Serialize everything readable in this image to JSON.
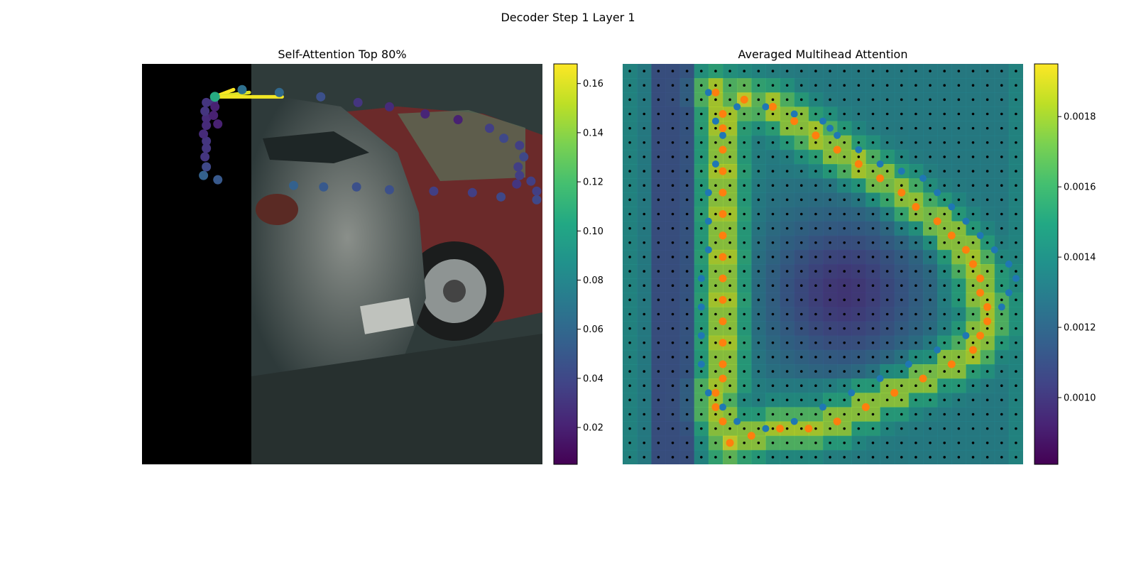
{
  "figure": {
    "title": "Decoder Step 1 Layer 1"
  },
  "chart_data": [
    {
      "type": "scatter",
      "title": "Self-Attention Top 80%",
      "background": "car photograph (left portion masked black)",
      "query_point": [
        51,
        23
      ],
      "attention_lines": [
        {
          "to": [
            64,
            18
          ],
          "weight": 0.17
        },
        {
          "to": [
            75,
            20
          ],
          "weight": 0.16
        },
        {
          "to": [
            98,
            23
          ],
          "weight": 0.165
        }
      ],
      "points": [
        [
          51,
          23,
          0.105
        ],
        [
          70,
          18,
          0.065
        ],
        [
          96,
          20,
          0.06
        ],
        [
          125,
          23,
          0.045
        ],
        [
          151,
          27,
          0.03
        ],
        [
          173,
          30,
          0.025
        ],
        [
          198,
          35,
          0.022
        ],
        [
          221,
          39,
          0.02
        ],
        [
          243,
          45,
          0.035
        ],
        [
          253,
          52,
          0.04
        ],
        [
          264,
          57,
          0.035
        ],
        [
          267,
          65,
          0.04
        ],
        [
          263,
          72,
          0.035
        ],
        [
          264,
          78,
          0.035
        ],
        [
          272,
          82,
          0.035
        ],
        [
          262,
          84,
          0.03
        ],
        [
          276,
          89,
          0.035
        ],
        [
          276,
          95,
          0.04
        ],
        [
          251,
          93,
          0.04
        ],
        [
          231,
          90,
          0.035
        ],
        [
          204,
          89,
          0.035
        ],
        [
          173,
          88,
          0.045
        ],
        [
          150,
          86,
          0.045
        ],
        [
          127,
          86,
          0.05
        ],
        [
          106,
          85,
          0.055
        ],
        [
          53,
          81,
          0.05
        ],
        [
          43,
          78,
          0.055
        ],
        [
          45,
          72,
          0.04
        ],
        [
          44,
          65,
          0.03
        ],
        [
          45,
          59,
          0.03
        ],
        [
          45,
          54,
          0.03
        ],
        [
          43,
          49,
          0.025
        ],
        [
          45,
          43,
          0.025
        ],
        [
          45,
          38,
          0.025
        ],
        [
          44,
          33,
          0.03
        ],
        [
          45,
          27,
          0.03
        ],
        [
          50,
          27,
          0.03
        ],
        [
          51,
          30,
          0.02
        ],
        [
          50,
          36,
          0.02
        ],
        [
          53,
          42,
          0.02
        ]
      ],
      "colorbar": {
        "min": 0.005,
        "max": 0.168,
        "ticks": [
          0.02,
          0.04,
          0.06,
          0.08,
          0.1,
          0.12,
          0.14,
          0.16
        ],
        "tick_labels": [
          "0.02",
          "0.04",
          "0.06",
          "0.08",
          "0.10",
          "0.12",
          "0.14",
          "0.16"
        ],
        "colormap": "viridis"
      }
    },
    {
      "type": "heatmap",
      "title": "Averaged Multihead Attention",
      "background": "car photograph",
      "grid": 28,
      "values_note": "attention averaged over heads, overlaid on image",
      "blue_points": [
        [
          6,
          2
        ],
        [
          8,
          3
        ],
        [
          10,
          3
        ],
        [
          12,
          3.5
        ],
        [
          14,
          4
        ],
        [
          14.5,
          4.5
        ],
        [
          15,
          5
        ],
        [
          16.5,
          6
        ],
        [
          18,
          7
        ],
        [
          19.5,
          7.5
        ],
        [
          21,
          8
        ],
        [
          22,
          9
        ],
        [
          23,
          10
        ],
        [
          24,
          11
        ],
        [
          25,
          12
        ],
        [
          26,
          13
        ],
        [
          27,
          14
        ],
        [
          27.5,
          15
        ],
        [
          27,
          16
        ],
        [
          26.5,
          17
        ],
        [
          25.5,
          18
        ],
        [
          24,
          19
        ],
        [
          22,
          20
        ],
        [
          20,
          21
        ],
        [
          18,
          22
        ],
        [
          16,
          23
        ],
        [
          14,
          24
        ],
        [
          12,
          25
        ],
        [
          10,
          25.5
        ],
        [
          8,
          25
        ],
        [
          7,
          24
        ],
        [
          6,
          23
        ],
        [
          5.5,
          21
        ],
        [
          5.5,
          19
        ],
        [
          5.5,
          17
        ],
        [
          5.5,
          15
        ],
        [
          6,
          13
        ],
        [
          6,
          11
        ],
        [
          6,
          9
        ],
        [
          6.5,
          7
        ],
        [
          7,
          5
        ],
        [
          6.5,
          4
        ]
      ],
      "orange_points": [
        [
          6.5,
          2
        ],
        [
          8.5,
          2.5
        ],
        [
          10.5,
          3
        ],
        [
          12,
          4
        ],
        [
          13.5,
          5
        ],
        [
          15,
          6
        ],
        [
          16.5,
          7
        ],
        [
          18,
          8
        ],
        [
          19.5,
          9
        ],
        [
          20.5,
          10
        ],
        [
          22,
          11
        ],
        [
          23,
          12
        ],
        [
          24,
          13
        ],
        [
          24.5,
          14
        ],
        [
          25,
          15
        ],
        [
          25,
          16
        ],
        [
          25.5,
          17
        ],
        [
          25.5,
          18
        ],
        [
          25,
          19
        ],
        [
          24.5,
          20
        ],
        [
          23,
          21
        ],
        [
          21,
          22
        ],
        [
          19,
          23
        ],
        [
          17,
          24
        ],
        [
          15,
          25
        ],
        [
          13,
          25.5
        ],
        [
          11,
          25.5
        ],
        [
          9,
          26
        ],
        [
          7.5,
          26.5
        ],
        [
          7,
          25
        ],
        [
          6.5,
          24
        ],
        [
          6.5,
          23
        ],
        [
          7,
          22
        ],
        [
          7,
          21
        ],
        [
          7,
          19.5
        ],
        [
          7,
          18
        ],
        [
          7,
          16.5
        ],
        [
          7,
          15
        ],
        [
          7,
          13.5
        ],
        [
          7,
          12
        ],
        [
          7,
          10.5
        ],
        [
          7,
          9
        ],
        [
          7,
          7.5
        ],
        [
          7,
          6
        ],
        [
          7,
          4.5
        ],
        [
          7,
          3.5
        ]
      ],
      "colorbar": {
        "min": 0.00081,
        "max": 0.00195,
        "ticks": [
          0.001,
          0.0012,
          0.0014,
          0.0016,
          0.0018
        ],
        "tick_labels": [
          "0.0010",
          "0.0012",
          "0.0014",
          "0.0016",
          "0.0018"
        ],
        "colormap": "viridis"
      }
    }
  ],
  "colors": {
    "blue_points": "#1f77b4",
    "orange_points": "#ff7f0e",
    "grid_dots": "#000000"
  }
}
